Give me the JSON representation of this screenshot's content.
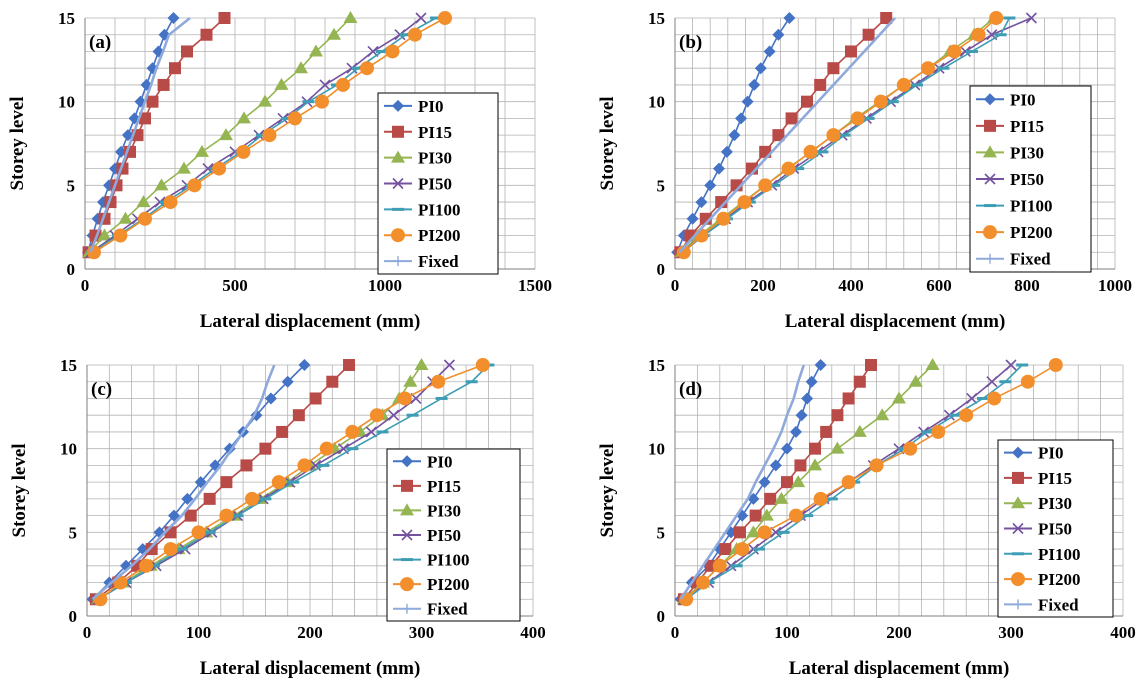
{
  "figure": {
    "xlabel": "Lateral displacement (mm)",
    "ylabel": "Storey level"
  },
  "series_styles": [
    {
      "name": "PI0",
      "color": "#4472C4",
      "marker": "diamond"
    },
    {
      "name": "PI15",
      "color": "#B84A48",
      "marker": "square"
    },
    {
      "name": "PI30",
      "color": "#94B552",
      "marker": "triangle"
    },
    {
      "name": "PI50",
      "color": "#7452A0",
      "marker": "x"
    },
    {
      "name": "PI100",
      "color": "#3D9DB5",
      "marker": "dash"
    },
    {
      "name": "PI200",
      "color": "#F28E2B",
      "marker": "circle"
    },
    {
      "name": "Fixed",
      "color": "#8EA9DB",
      "marker": "plus"
    }
  ],
  "chart_data": [
    {
      "type": "line",
      "panel_label": "(a)",
      "xlabel": "Lateral displacement (mm)",
      "ylabel": "Storey level",
      "xlim": [
        0,
        1500
      ],
      "xticks": [
        0,
        500,
        1000,
        1500
      ],
      "ylim": [
        0,
        15
      ],
      "yticks": [
        0,
        5,
        10,
        15
      ],
      "grid": true,
      "legend": "right",
      "y": [
        1,
        2,
        3,
        4,
        5,
        6,
        7,
        8,
        9,
        10,
        11,
        12,
        13,
        14,
        15
      ],
      "series": [
        {
          "name": "PI0",
          "x": [
            10,
            25,
            42,
            60,
            80,
            100,
            120,
            143,
            165,
            185,
            205,
            225,
            245,
            265,
            295
          ]
        },
        {
          "name": "PI15",
          "x": [
            12,
            35,
            65,
            85,
            105,
            125,
            150,
            175,
            200,
            225,
            262,
            300,
            340,
            405,
            465
          ]
        },
        {
          "name": "PI30",
          "x": [
            15,
            65,
            135,
            195,
            255,
            330,
            390,
            470,
            530,
            600,
            655,
            720,
            770,
            830,
            885
          ]
        },
        {
          "name": "PI50",
          "x": [
            20,
            100,
            175,
            250,
            340,
            410,
            500,
            580,
            660,
            740,
            800,
            890,
            960,
            1050,
            1120
          ]
        },
        {
          "name": "PI100",
          "x": [
            25,
            110,
            195,
            270,
            355,
            435,
            520,
            590,
            675,
            745,
            840,
            910,
            990,
            1070,
            1170
          ]
        },
        {
          "name": "PI200",
          "x": [
            30,
            118,
            200,
            285,
            365,
            447,
            528,
            615,
            700,
            790,
            860,
            940,
            1025,
            1100,
            1200
          ]
        },
        {
          "name": "Fixed",
          "x": [
            18,
            40,
            60,
            80,
            100,
            120,
            140,
            160,
            180,
            200,
            220,
            238,
            260,
            280,
            350
          ]
        }
      ]
    },
    {
      "type": "line",
      "panel_label": "(b)",
      "xlabel": "Lateral displacement (mm)",
      "ylabel": "Storey level",
      "xlim": [
        0,
        1000
      ],
      "xticks": [
        0,
        200,
        400,
        600,
        800,
        1000
      ],
      "ylim": [
        0,
        15
      ],
      "yticks": [
        0,
        5,
        10,
        15
      ],
      "grid": true,
      "legend": "right",
      "y": [
        1,
        2,
        3,
        4,
        5,
        6,
        7,
        8,
        9,
        10,
        11,
        12,
        13,
        14,
        15
      ],
      "series": [
        {
          "name": "PI0",
          "x": [
            5,
            20,
            40,
            60,
            80,
            100,
            118,
            135,
            150,
            165,
            180,
            195,
            215,
            235,
            260
          ]
        },
        {
          "name": "PI15",
          "x": [
            12,
            35,
            70,
            105,
            140,
            175,
            205,
            235,
            265,
            300,
            330,
            360,
            400,
            440,
            480
          ]
        },
        {
          "name": "PI30",
          "x": [
            15,
            55,
            105,
            155,
            205,
            255,
            310,
            360,
            410,
            465,
            520,
            575,
            625,
            680,
            725
          ]
        },
        {
          "name": "PI50",
          "x": [
            18,
            60,
            115,
            165,
            220,
            270,
            325,
            380,
            435,
            490,
            545,
            600,
            660,
            720,
            810
          ]
        },
        {
          "name": "PI100",
          "x": [
            18,
            65,
            118,
            170,
            225,
            280,
            335,
            385,
            440,
            495,
            550,
            610,
            675,
            740,
            760
          ]
        },
        {
          "name": "PI200",
          "x": [
            20,
            60,
            110,
            158,
            205,
            258,
            308,
            360,
            415,
            468,
            520,
            575,
            635,
            690,
            730
          ]
        },
        {
          "name": "Fixed",
          "x": [
            10,
            45,
            80,
            115,
            150,
            185,
            220,
            255,
            290,
            325,
            360,
            395,
            430,
            465,
            500
          ]
        }
      ]
    },
    {
      "type": "line",
      "panel_label": "(c)",
      "xlabel": "Lateral displacement (mm)",
      "ylabel": "Storey level",
      "xlim": [
        0,
        400
      ],
      "xticks": [
        0,
        100,
        200,
        300,
        400
      ],
      "ylim": [
        0,
        15
      ],
      "yticks": [
        0,
        5,
        10,
        15
      ],
      "grid": true,
      "legend": "right",
      "y": [
        1,
        2,
        3,
        4,
        5,
        6,
        7,
        8,
        9,
        10,
        11,
        12,
        13,
        14,
        15
      ],
      "series": [
        {
          "name": "PI0",
          "x": [
            5,
            20,
            35,
            50,
            65,
            78,
            90,
            102,
            115,
            128,
            140,
            152,
            165,
            180,
            195
          ]
        },
        {
          "name": "PI15",
          "x": [
            8,
            28,
            45,
            58,
            75,
            93,
            110,
            125,
            143,
            160,
            175,
            190,
            205,
            220,
            235
          ]
        },
        {
          "name": "PI30",
          "x": [
            10,
            33,
            57,
            82,
            107,
            132,
            155,
            180,
            200,
            222,
            245,
            265,
            280,
            290,
            300
          ]
        },
        {
          "name": "PI50",
          "x": [
            10,
            35,
            62,
            88,
            112,
            135,
            158,
            182,
            205,
            230,
            255,
            275,
            295,
            310,
            325
          ]
        },
        {
          "name": "PI100",
          "x": [
            10,
            35,
            60,
            85,
            110,
            135,
            160,
            185,
            212,
            238,
            265,
            292,
            318,
            345,
            360
          ]
        },
        {
          "name": "PI200",
          "x": [
            12,
            30,
            53,
            75,
            100,
            125,
            148,
            172,
            195,
            215,
            238,
            260,
            285,
            315,
            355
          ]
        },
        {
          "name": "Fixed",
          "x": [
            5,
            22,
            40,
            56,
            70,
            85,
            97,
            108,
            120,
            130,
            140,
            150,
            157,
            162,
            168
          ]
        }
      ]
    },
    {
      "type": "line",
      "panel_label": "(d)",
      "xlabel": "Lateral displacement (mm)",
      "ylabel": "Storey level",
      "xlim": [
        0,
        400
      ],
      "xticks": [
        0,
        100,
        200,
        300,
        400
      ],
      "ylim": [
        0,
        15
      ],
      "yticks": [
        0,
        5,
        10,
        15
      ],
      "grid": true,
      "legend": "right",
      "y": [
        1,
        2,
        3,
        4,
        5,
        6,
        7,
        8,
        9,
        10,
        11,
        12,
        13,
        14,
        15
      ],
      "series": [
        {
          "name": "PI0",
          "x": [
            5,
            15,
            30,
            40,
            50,
            60,
            70,
            80,
            90,
            100,
            108,
            113,
            118,
            122,
            130
          ]
        },
        {
          "name": "PI15",
          "x": [
            8,
            20,
            32,
            45,
            58,
            72,
            85,
            100,
            112,
            125,
            135,
            145,
            155,
            165,
            175
          ]
        },
        {
          "name": "PI30",
          "x": [
            8,
            25,
            40,
            55,
            70,
            82,
            95,
            110,
            125,
            145,
            165,
            185,
            200,
            215,
            230
          ]
        },
        {
          "name": "PI50",
          "x": [
            8,
            30,
            50,
            70,
            90,
            112,
            133,
            155,
            177,
            200,
            222,
            245,
            265,
            283,
            300
          ]
        },
        {
          "name": "PI100",
          "x": [
            10,
            30,
            55,
            75,
            97,
            118,
            140,
            160,
            180,
            205,
            225,
            250,
            275,
            295,
            310
          ]
        },
        {
          "name": "PI200",
          "x": [
            10,
            25,
            40,
            60,
            80,
            108,
            130,
            155,
            180,
            210,
            235,
            260,
            285,
            315,
            340
          ]
        },
        {
          "name": "Fixed",
          "x": [
            5,
            15,
            25,
            35,
            45,
            55,
            65,
            72,
            80,
            88,
            95,
            100,
            106,
            110,
            115
          ]
        }
      ]
    }
  ]
}
